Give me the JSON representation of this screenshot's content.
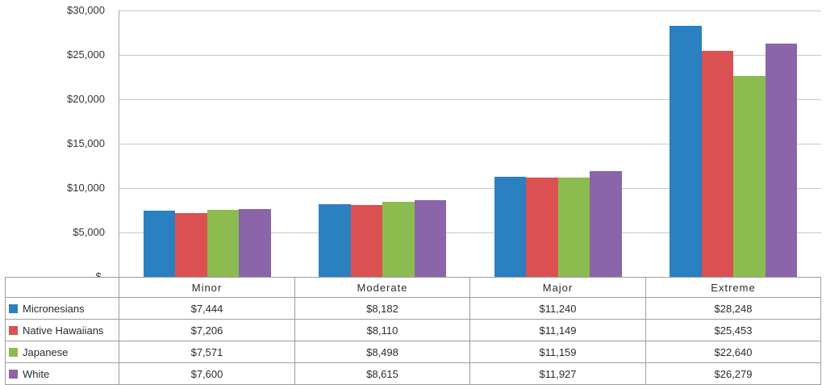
{
  "chart_data": {
    "type": "bar",
    "title": "",
    "xlabel": "",
    "ylabel": "",
    "categories": [
      "Minor",
      "Moderate",
      "Major",
      "Extreme"
    ],
    "series": [
      {
        "name": "Micronesians",
        "color": "#2a80c1",
        "values": [
          7444,
          8182,
          11240,
          28248
        ]
      },
      {
        "name": "Native Hawaiians",
        "color": "#db5050",
        "values": [
          7206,
          8110,
          11149,
          25453
        ]
      },
      {
        "name": "Japanese",
        "color": "#8cbc50",
        "values": [
          7571,
          8498,
          11159,
          22640
        ]
      },
      {
        "name": "White",
        "color": "#8b64a9",
        "values": [
          7600,
          8615,
          11927,
          26279
        ]
      }
    ],
    "y_ticks": [
      "$30,000",
      "$25,000",
      "$20,000",
      "$15,000",
      "$10,000",
      "$5,000",
      "$-"
    ],
    "ylim": [
      0,
      30000
    ],
    "grid": true,
    "legend_position": "table-left-column",
    "value_format": "usd",
    "bar_gap_percent": 150
  },
  "colors": {
    "gridline": "#c8c8c8",
    "axis": "#a6a6a6",
    "table_border": "#9e9e9e",
    "text": "#2b2b2b",
    "background": "#ffffff"
  }
}
